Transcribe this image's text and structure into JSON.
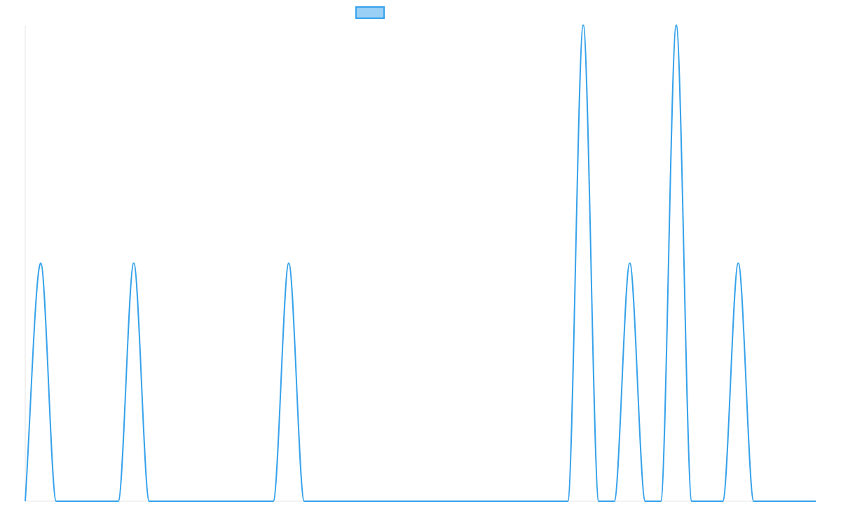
{
  "chart_data": {
    "type": "line",
    "title": "",
    "xlabel": "",
    "ylabel": "",
    "legend": {
      "placement": "top-center",
      "entries": [
        {
          "label": "",
          "color": "#36a2eb",
          "fill": "#9ad0f5"
        }
      ]
    },
    "grid": false,
    "x": [
      0,
      1,
      2,
      3,
      4,
      5,
      6,
      7,
      8,
      9,
      10,
      11,
      12,
      13,
      14,
      15,
      16,
      17,
      18,
      19,
      20,
      21,
      22,
      23,
      24,
      25,
      26,
      27,
      28,
      29,
      30,
      31,
      32,
      33,
      34,
      35,
      36,
      37,
      38,
      39,
      40,
      41,
      42,
      43,
      44,
      45,
      46,
      47,
      48,
      49,
      50,
      51
    ],
    "xlim": [
      0,
      51
    ],
    "ylim": [
      0,
      2
    ],
    "series": [
      {
        "name": "",
        "color": "#36a2eb",
        "values": [
          0,
          1,
          0,
          0,
          0,
          0,
          0,
          1,
          0,
          0,
          0,
          0,
          0,
          0,
          0,
          0,
          0,
          1,
          0,
          0,
          0,
          0,
          0,
          0,
          0,
          0,
          0,
          0,
          0,
          0,
          0,
          0,
          0,
          0,
          0,
          0,
          2,
          0,
          0,
          1,
          0,
          0,
          2,
          0,
          0,
          0,
          1,
          0,
          0,
          0,
          0,
          0
        ]
      }
    ]
  }
}
